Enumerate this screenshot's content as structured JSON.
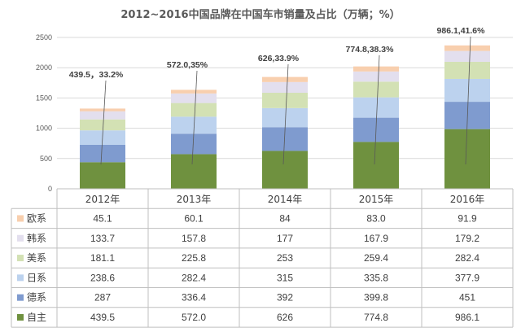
{
  "chart_data": {
    "type": "bar",
    "stacked": true,
    "title": "2012~2016中国品牌在中国车市销量及占比（万辆；%）",
    "categories": [
      "2012年",
      "2013年",
      "2014年",
      "2015年",
      "2016年"
    ],
    "ylim": [
      0,
      2500
    ],
    "yticks": [
      "0",
      "500",
      "1000",
      "1500",
      "2000",
      "2500"
    ],
    "grid": true,
    "legend": "table-left",
    "series": [
      {
        "name": "自主",
        "color": "#6f913f",
        "values": [
          439.5,
          572.0,
          626,
          774.8,
          986.1
        ],
        "labels": [
          "439.5",
          "572.0",
          "626",
          "774.8",
          "986.1"
        ]
      },
      {
        "name": "德系",
        "color": "#7f9bcf",
        "values": [
          287,
          336.4,
          392,
          399.8,
          451
        ],
        "labels": [
          "287",
          "336.4",
          "392",
          "399.8",
          "451"
        ]
      },
      {
        "name": "日系",
        "color": "#bcd2ee",
        "values": [
          238.6,
          282.4,
          315,
          335.8,
          377.9
        ],
        "labels": [
          "238.6",
          "282.4",
          "315",
          "335.8",
          "377.9"
        ]
      },
      {
        "name": "美系",
        "color": "#d3e1b4",
        "values": [
          181.1,
          225.8,
          253,
          259.4,
          282.4
        ],
        "labels": [
          "181.1",
          "225.8",
          "253",
          "259.4",
          "282.4"
        ]
      },
      {
        "name": "韩系",
        "color": "#e3dfee",
        "values": [
          133.7,
          157.8,
          177,
          167.9,
          179.2
        ],
        "labels": [
          "133.7",
          "157.8",
          "177",
          "167.9",
          "179.2"
        ]
      },
      {
        "name": "欧系",
        "color": "#f8cfae",
        "values": [
          45.1,
          60.1,
          84,
          83.0,
          91.9
        ],
        "labels": [
          "45.1",
          "60.1",
          "84",
          "83.0",
          "91.9"
        ]
      }
    ],
    "table_row_order": [
      "欧系",
      "韩系",
      "美系",
      "日系",
      "德系",
      "自主"
    ],
    "annotations": [
      "439.5，33.2%",
      "572.0,35%",
      "626,33.9%",
      "774.8,38.3%",
      "986.1,41.6%"
    ]
  }
}
